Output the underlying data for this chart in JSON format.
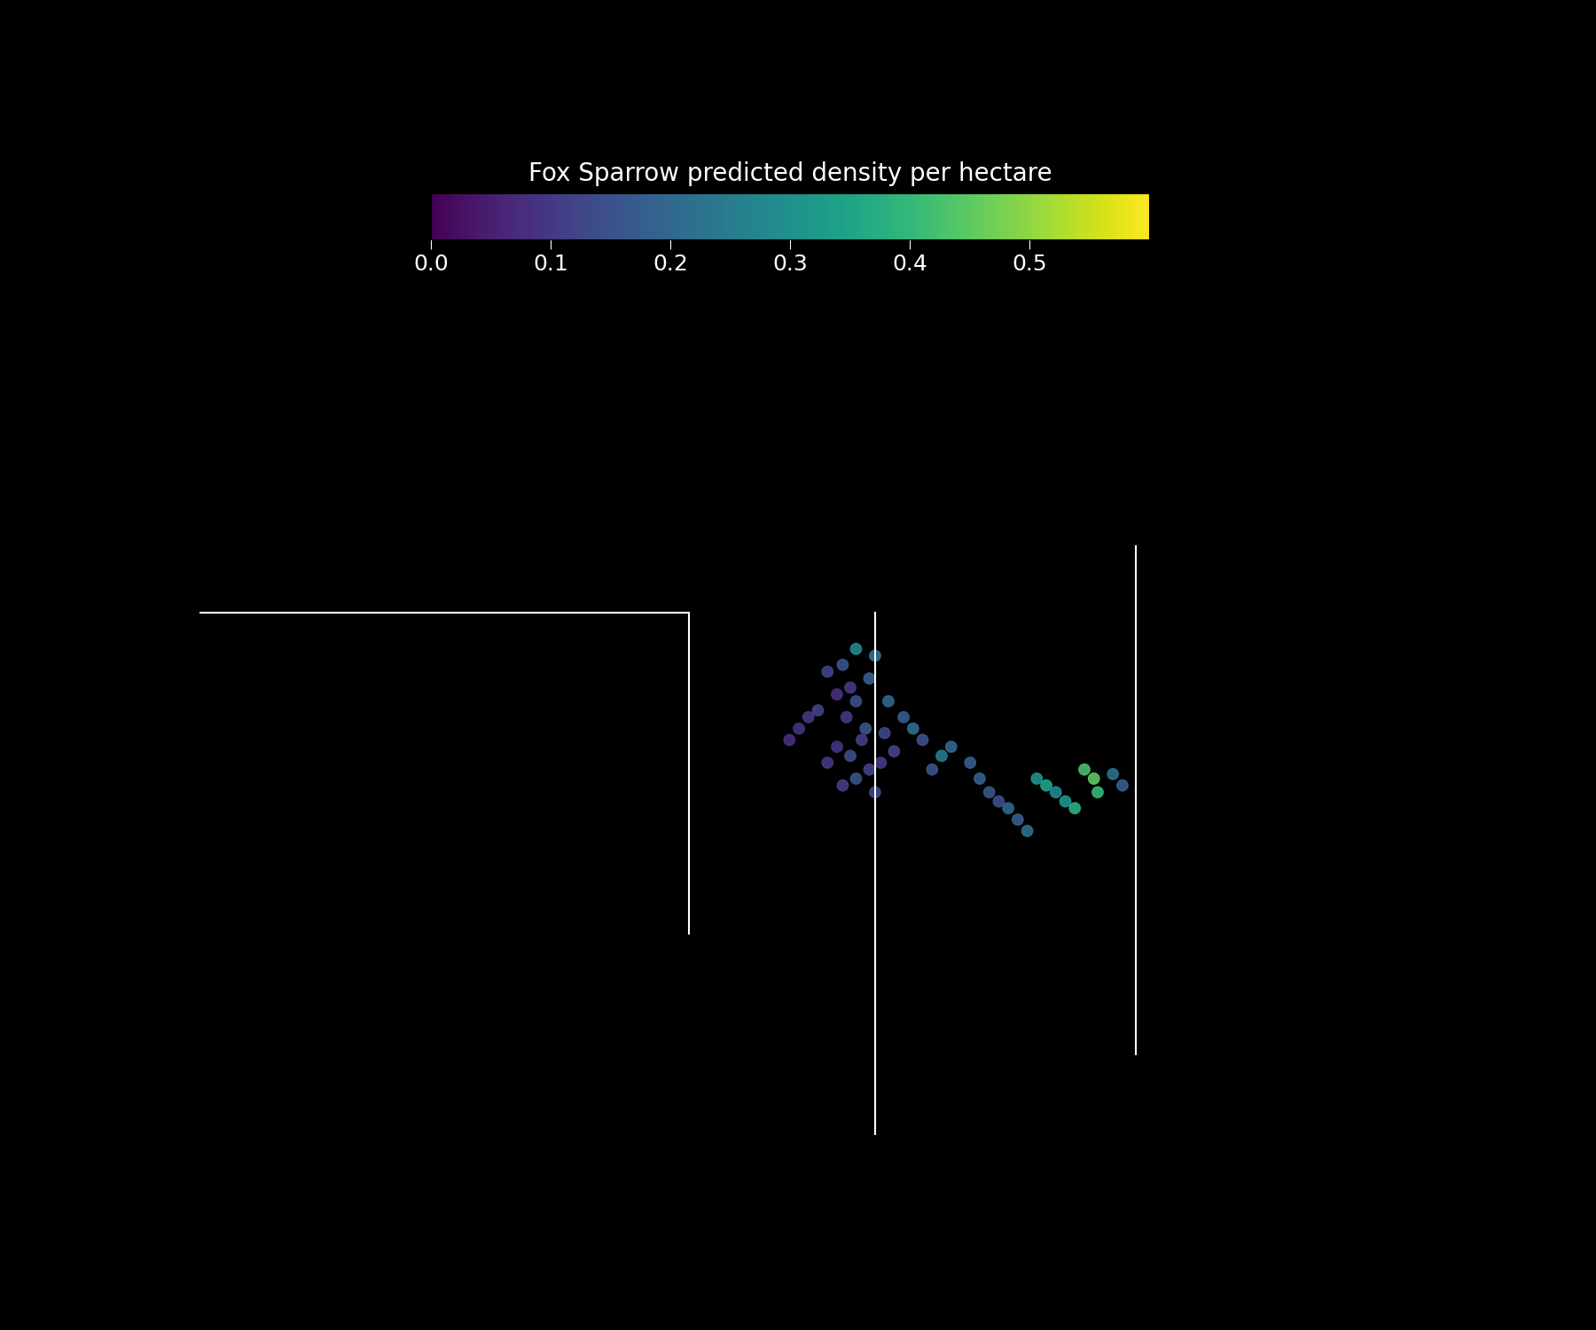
{
  "title": "Fox Sparrow predicted density per hectare",
  "colorbar_label": "Fox Sparrow predicted density per hectare",
  "colormap": "viridis",
  "vmin": 0.0,
  "vmax": 0.6,
  "colorbar_ticks": [
    0.0,
    0.1,
    0.2,
    0.3,
    0.4,
    0.5
  ],
  "colorbar_ticklabels": [
    "0.0",
    "0.1",
    "0.2",
    "0.3",
    "0.4",
    "0.5"
  ],
  "background_color": "#000000",
  "map_line_color": "#ffffff",
  "text_color": "#ffffff",
  "point_size": 80,
  "point_alpha": 0.9,
  "points": [
    {
      "lon": -72.55,
      "lat": 44.85,
      "density": 0.28
    },
    {
      "lon": -72.45,
      "lat": 44.82,
      "density": 0.22
    },
    {
      "lon": -72.62,
      "lat": 44.78,
      "density": 0.15
    },
    {
      "lon": -72.7,
      "lat": 44.75,
      "density": 0.12
    },
    {
      "lon": -72.48,
      "lat": 44.72,
      "density": 0.18
    },
    {
      "lon": -72.58,
      "lat": 44.68,
      "density": 0.1
    },
    {
      "lon": -72.65,
      "lat": 44.65,
      "density": 0.08
    },
    {
      "lon": -72.55,
      "lat": 44.62,
      "density": 0.14
    },
    {
      "lon": -72.75,
      "lat": 44.58,
      "density": 0.12
    },
    {
      "lon": -72.6,
      "lat": 44.55,
      "density": 0.1
    },
    {
      "lon": -72.5,
      "lat": 44.5,
      "density": 0.16
    },
    {
      "lon": -72.4,
      "lat": 44.48,
      "density": 0.13
    },
    {
      "lon": -72.52,
      "lat": 44.45,
      "density": 0.11
    },
    {
      "lon": -72.65,
      "lat": 44.42,
      "density": 0.09
    },
    {
      "lon": -72.58,
      "lat": 44.38,
      "density": 0.14
    },
    {
      "lon": -72.7,
      "lat": 44.35,
      "density": 0.1
    },
    {
      "lon": -72.48,
      "lat": 44.32,
      "density": 0.12
    },
    {
      "lon": -72.55,
      "lat": 44.28,
      "density": 0.15
    },
    {
      "lon": -72.62,
      "lat": 44.25,
      "density": 0.11
    },
    {
      "lon": -72.45,
      "lat": 44.22,
      "density": 0.13
    },
    {
      "lon": -72.8,
      "lat": 44.55,
      "density": 0.1
    },
    {
      "lon": -72.85,
      "lat": 44.5,
      "density": 0.09
    },
    {
      "lon": -72.9,
      "lat": 44.45,
      "density": 0.08
    },
    {
      "lon": -72.38,
      "lat": 44.62,
      "density": 0.2
    },
    {
      "lon": -72.3,
      "lat": 44.55,
      "density": 0.17
    },
    {
      "lon": -72.25,
      "lat": 44.5,
      "density": 0.22
    },
    {
      "lon": -72.2,
      "lat": 44.45,
      "density": 0.15
    },
    {
      "lon": -72.35,
      "lat": 44.4,
      "density": 0.12
    },
    {
      "lon": -72.42,
      "lat": 44.35,
      "density": 0.1
    },
    {
      "lon": -71.9,
      "lat": 44.28,
      "density": 0.18
    },
    {
      "lon": -71.85,
      "lat": 44.22,
      "density": 0.16
    },
    {
      "lon": -71.8,
      "lat": 44.18,
      "density": 0.14
    },
    {
      "lon": -71.75,
      "lat": 44.15,
      "density": 0.2
    },
    {
      "lon": -71.7,
      "lat": 44.1,
      "density": 0.18
    },
    {
      "lon": -71.65,
      "lat": 44.05,
      "density": 0.22
    },
    {
      "lon": -72.1,
      "lat": 44.38,
      "density": 0.25
    },
    {
      "lon": -72.05,
      "lat": 44.42,
      "density": 0.2
    },
    {
      "lon": -72.15,
      "lat": 44.32,
      "density": 0.15
    },
    {
      "lon": -71.95,
      "lat": 44.35,
      "density": 0.18
    },
    {
      "lon": -71.6,
      "lat": 44.28,
      "density": 0.3
    },
    {
      "lon": -71.55,
      "lat": 44.25,
      "density": 0.35
    },
    {
      "lon": -71.5,
      "lat": 44.22,
      "density": 0.28
    },
    {
      "lon": -71.45,
      "lat": 44.18,
      "density": 0.32
    },
    {
      "lon": -71.4,
      "lat": 44.15,
      "density": 0.38
    },
    {
      "lon": -71.35,
      "lat": 44.32,
      "density": 0.42
    },
    {
      "lon": -71.3,
      "lat": 44.28,
      "density": 0.45
    },
    {
      "lon": -71.28,
      "lat": 44.22,
      "density": 0.4
    },
    {
      "lon": -71.2,
      "lat": 44.3,
      "density": 0.22
    },
    {
      "lon": -71.15,
      "lat": 44.25,
      "density": 0.18
    }
  ],
  "xlim": [
    -76.0,
    -69.5
  ],
  "ylim": [
    42.5,
    47.0
  ],
  "figsize": [
    18,
    15
  ],
  "dpi": 100
}
